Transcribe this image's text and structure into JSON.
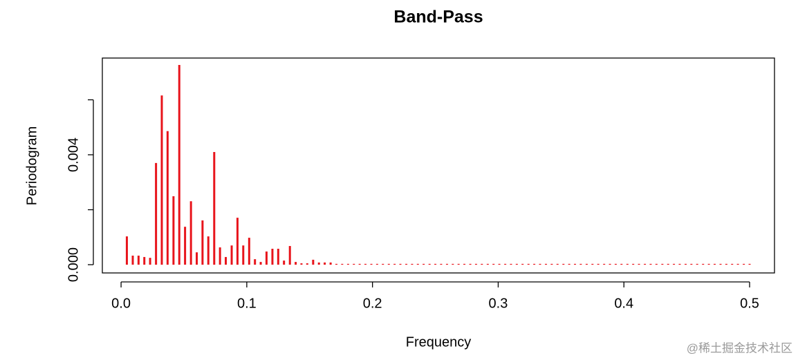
{
  "chart_data": {
    "type": "spike",
    "title": "Band-Pass",
    "x_label": "Frequency",
    "y_label": "Periodogram",
    "watermark": "@稀土掘金技术社区",
    "color": "#e8141b",
    "xlim": [
      -0.0149,
      0.5198
    ],
    "ylim": [
      -0.0003,
      0.00752
    ],
    "xticks": [
      {
        "value": 0,
        "label": "0.0"
      },
      0.1,
      0.2,
      0.3,
      0.4,
      0.5
    ],
    "yticks": [
      {
        "value": 0,
        "label": "0.000"
      },
      {
        "value": 0.002,
        "label": null
      },
      {
        "value": 0.004,
        "label": "0.004"
      },
      {
        "value": 0.006,
        "label": null
      }
    ],
    "x": [
      0.0046,
      0.0093,
      0.0139,
      0.0185,
      0.0231,
      0.0278,
      0.0324,
      0.037,
      0.0417,
      0.0463,
      0.0509,
      0.0556,
      0.0602,
      0.0648,
      0.0694,
      0.0741,
      0.0787,
      0.0833,
      0.088,
      0.0926,
      0.0972,
      0.1019,
      0.1065,
      0.1111,
      0.1157,
      0.1204,
      0.125,
      0.1296,
      0.1343,
      0.1389,
      0.1435,
      0.1481,
      0.1528,
      0.1574,
      0.162,
      0.1667,
      0.1713,
      0.1759,
      0.1806,
      0.1852,
      0.1898,
      0.1944,
      0.1991,
      0.2037,
      0.2083,
      0.213,
      0.2176,
      0.2222,
      0.2269,
      0.2315,
      0.2361,
      0.2407,
      0.2454,
      0.25,
      0.2546,
      0.2593,
      0.2639,
      0.2685,
      0.2731,
      0.2778,
      0.2824,
      0.287,
      0.2917,
      0.2963,
      0.3009,
      0.3056,
      0.3102,
      0.3148,
      0.3194,
      0.3241,
      0.3287,
      0.3333,
      0.338,
      0.3426,
      0.3472,
      0.3519,
      0.3565,
      0.3611,
      0.3657,
      0.3704,
      0.375,
      0.3796,
      0.3843,
      0.3889,
      0.3935,
      0.3981,
      0.4028,
      0.4074,
      0.412,
      0.4167,
      0.4213,
      0.4259,
      0.4306,
      0.4352,
      0.4398,
      0.4444,
      0.4491,
      0.4537,
      0.4583,
      0.463,
      0.4676,
      0.4722,
      0.4769,
      0.4815,
      0.4861,
      0.4907,
      0.4954,
      0.5
    ],
    "values": [
      0.00103,
      0.00033,
      0.00033,
      0.00028,
      0.00025,
      0.0037,
      0.00616,
      0.00486,
      0.00249,
      0.00727,
      0.00138,
      0.00231,
      0.00045,
      0.00161,
      0.00103,
      0.0041,
      0.00063,
      0.00028,
      0.0007,
      0.00171,
      0.0007,
      0.00098,
      0.0002,
      0.0001,
      0.00048,
      0.00058,
      0.00058,
      0.00015,
      0.00068,
      0.0001,
      5e-05,
      5e-05,
      0.00018,
      8e-05,
      8e-05,
      8e-05,
      3e-05,
      3e-05,
      3e-05,
      3e-05,
      3e-05,
      3e-05,
      3e-05,
      3e-05,
      3e-05,
      3e-05,
      3e-05,
      3e-05,
      3e-05,
      3e-05,
      3e-05,
      3e-05,
      3e-05,
      3e-05,
      3e-05,
      3e-05,
      3e-05,
      3e-05,
      3e-05,
      3e-05,
      3e-05,
      3e-05,
      3e-05,
      3e-05,
      3e-05,
      3e-05,
      3e-05,
      3e-05,
      3e-05,
      3e-05,
      3e-05,
      3e-05,
      3e-05,
      3e-05,
      3e-05,
      3e-05,
      3e-05,
      3e-05,
      3e-05,
      3e-05,
      3e-05,
      3e-05,
      3e-05,
      3e-05,
      3e-05,
      3e-05,
      3e-05,
      3e-05,
      3e-05,
      3e-05,
      3e-05,
      3e-05,
      3e-05,
      3e-05,
      3e-05,
      3e-05,
      3e-05,
      3e-05,
      3e-05,
      3e-05,
      3e-05,
      3e-05,
      3e-05,
      3e-05,
      3e-05,
      3e-05,
      3e-05,
      3e-05
    ]
  }
}
